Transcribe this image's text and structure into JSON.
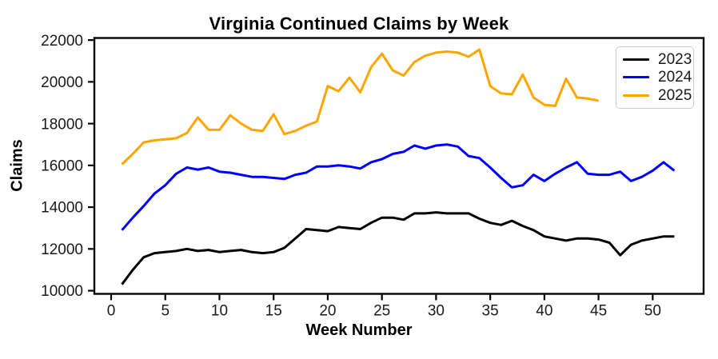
{
  "chart_data": {
    "type": "line",
    "title": "Virginia Continued Claims by Week",
    "xlabel": "Week Number",
    "ylabel": "Claims",
    "grid": false,
    "legend_position": "upper right",
    "xlim": [
      -1.55,
      54.7
    ],
    "ylim": [
      9850,
      22100
    ],
    "x_ticks": [
      0,
      5,
      10,
      15,
      20,
      25,
      30,
      35,
      40,
      45,
      50
    ],
    "y_ticks": [
      10000,
      12000,
      14000,
      16000,
      18000,
      20000,
      22000
    ],
    "x": [
      1,
      2,
      3,
      4,
      5,
      6,
      7,
      8,
      9,
      10,
      11,
      12,
      13,
      14,
      15,
      16,
      17,
      18,
      19,
      20,
      21,
      22,
      23,
      24,
      25,
      26,
      27,
      28,
      29,
      30,
      31,
      32,
      33,
      34,
      35,
      36,
      37,
      38,
      39,
      40,
      41,
      42,
      43,
      44,
      45,
      46,
      47,
      48,
      49,
      50,
      51,
      52
    ],
    "series": [
      {
        "name": "2023",
        "color": "#000000",
        "values": [
          10300,
          11000,
          11600,
          11800,
          11850,
          11900,
          12000,
          11900,
          11950,
          11850,
          11900,
          11950,
          11850,
          11800,
          11850,
          12050,
          12500,
          12950,
          12900,
          12850,
          13050,
          13000,
          12950,
          13250,
          13500,
          13500,
          13400,
          13700,
          13700,
          13750,
          13700,
          13700,
          13700,
          13450,
          13250,
          13150,
          13350,
          13100,
          12900,
          12600,
          12500,
          12400,
          12500,
          12500,
          12450,
          12300,
          11700,
          12200,
          12400,
          12500,
          12600,
          12600
        ]
      },
      {
        "name": "2024",
        "color": "#0000ff",
        "values": [
          12900,
          13500,
          14050,
          14650,
          15050,
          15600,
          15900,
          15800,
          15900,
          15700,
          15650,
          15550,
          15450,
          15450,
          15400,
          15350,
          15550,
          15650,
          15950,
          15950,
          16000,
          15950,
          15850,
          16150,
          16300,
          16550,
          16650,
          16950,
          16800,
          16950,
          17000,
          16900,
          16450,
          16350,
          15900,
          15400,
          14950,
          15050,
          15550,
          15250,
          15600,
          15900,
          16150,
          15600,
          15550,
          15550,
          15700,
          15250,
          15450,
          15750,
          16150,
          15750
        ]
      },
      {
        "name": "2025",
        "color": "#ffa500",
        "values": [
          16050,
          16550,
          17100,
          17200,
          17250,
          17300,
          17550,
          18300,
          17700,
          17700,
          18400,
          18000,
          17700,
          17650,
          18450,
          17500,
          17650,
          17900,
          18100,
          19800,
          19550,
          20200,
          19500,
          20700,
          21350,
          20550,
          20300,
          20950,
          21250,
          21400,
          21450,
          21400,
          21200,
          21550,
          19800,
          19450,
          19400,
          20350,
          19250,
          18900,
          18850,
          20150,
          19250,
          19200,
          19100
        ]
      }
    ]
  }
}
